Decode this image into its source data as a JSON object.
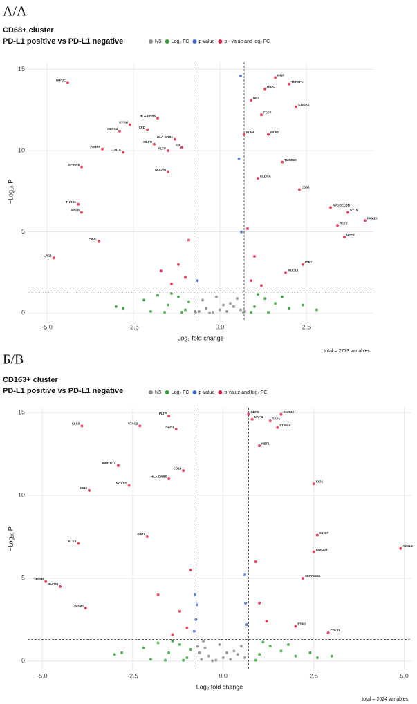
{
  "chart_data": [
    {
      "type": "scatter",
      "panel_label": "А/А",
      "title": "CD68+ cluster",
      "subtitle": "PD-L1 positive vs PD-L1 negative",
      "x_label": "Log₂ fold change",
      "y_label": "−Log₁₀ P",
      "caption": "total = 2773 variables",
      "xlim": [
        -5.56,
        4.44
      ],
      "ylim": [
        -0.5,
        15.45
      ],
      "xticks": [
        {
          "value": -5,
          "label": "-5.0"
        },
        -2.5,
        {
          "value": 0,
          "label": "0.0"
        },
        2.5
      ],
      "yticks": [
        0,
        5,
        10,
        15
      ],
      "grid": true,
      "vlines": [
        -0.75,
        0.7
      ],
      "hline": 1.3,
      "legend": "top-right",
      "series": [
        {
          "name": "NS",
          "color": "#8c8c8c",
          "x": [
            -0.6,
            -0.4,
            -0.2,
            0,
            0.2,
            0.4,
            0.6,
            -0.5,
            0.3,
            -0.1,
            0.5,
            -0.3,
            0.1,
            -0.7,
            0.68,
            -0.72,
            0.72
          ],
          "values": [
            0.1,
            0.3,
            0.05,
            0.2,
            0.1,
            0.4,
            0.2,
            0.8,
            0.6,
            1.0,
            0.9,
            0.02,
            0.5,
            0.05,
            0.05,
            0.1,
            0.1
          ]
        },
        {
          "name": "Log₂ FC",
          "color": "#3aa13a",
          "x": [
            -2.8,
            -2.2,
            -1.8,
            -1.5,
            -1.2,
            -1.0,
            -0.9,
            1.0,
            1.3,
            1.6,
            2.0,
            2.4,
            -2.0,
            -1.4,
            1.1,
            1.8,
            -3.0,
            2.8,
            -1.1,
            -1.6,
            0.9,
            1.4
          ],
          "values": [
            0.3,
            0.8,
            1.1,
            0.5,
            1.0,
            0.2,
            0.7,
            0.4,
            0.9,
            0.6,
            0.3,
            0.5,
            0.1,
            1.2,
            1.15,
            1.0,
            0.4,
            0.2,
            0.05,
            0.05,
            0.05,
            0.05
          ]
        },
        {
          "name": "p-value",
          "color": "#4a6fd1",
          "x": [
            0.6,
            0.55,
            0.62,
            -0.65
          ],
          "values": [
            14.6,
            9.5,
            5.0,
            2.0
          ]
        },
        {
          "name": "p - value and log₂ FC",
          "color": "#e0294a",
          "x": [
            -4.4,
            -2.6,
            -1.8,
            -2.1,
            -2.9,
            -3.4,
            -1.9,
            -1.5,
            -1.1,
            -1.3,
            -2.8,
            -4.0,
            -1.5,
            -4.1,
            -4.0,
            -4.8,
            -3.5,
            -1.2,
            -1.0,
            -1.4,
            -0.9,
            -1.7,
            1.6,
            2.0,
            1.3,
            2.2,
            0.9,
            1.2,
            0.7,
            1.4,
            1.8,
            1.1,
            2.3,
            3.2,
            3.7,
            4.2,
            3.4,
            3.6,
            2.4,
            1.9,
            1.0,
            0.9,
            1.2,
            0.8
          ],
          "values": [
            14.2,
            11.6,
            12.0,
            11.3,
            11.2,
            10.1,
            10.4,
            10.0,
            10.2,
            10.7,
            9.9,
            9.0,
            8.7,
            6.7,
            6.2,
            3.4,
            4.4,
            3.0,
            2.2,
            1.8,
            4.5,
            2.6,
            14.5,
            14.1,
            13.8,
            12.7,
            13.1,
            12.2,
            11.0,
            11.0,
            9.3,
            8.3,
            7.6,
            6.5,
            6.2,
            5.7,
            5.4,
            4.7,
            3.0,
            2.5,
            3.5,
            2.0,
            1.7,
            5.2
          ],
          "point_labels": [
            "TAPDE",
            "KYNU",
            "HLA-DRB5",
            "CFD",
            "CERS4",
            "FABP5",
            "MLPH",
            "PLTP",
            "C3",
            "HLA-DRB1",
            "FCN1A",
            "SPINK5",
            "ALCAM",
            "THBS1",
            "APOD",
            "LRG1",
            "CPVL",
            null,
            null,
            null,
            null,
            null,
            "MGP",
            "TNFSF1",
            "RNAJ",
            "S100A1",
            "NNT",
            "FGF7",
            "FLNA",
            "MLF2",
            "TMSB10",
            "CLDNA",
            "CD36",
            "APOBEC3B",
            "SYT5",
            "FAM20",
            "RCT7",
            "UPP2",
            "IGF2",
            "MUC16",
            null,
            null,
            null,
            null
          ]
        }
      ]
    },
    {
      "type": "scatter",
      "panel_label": "Б/В",
      "title": "CD163+ cluster",
      "subtitle": "PD-L1 positive vs PD-L1 negative",
      "x_label": "Log₂ fold change",
      "y_label": "−Log₁₀ P",
      "caption": "total = 2024 variables",
      "xlim": [
        -5.4,
        5.2
      ],
      "ylim": [
        -0.55,
        15.3
      ],
      "xticks": [
        {
          "value": -5,
          "label": "-5.0"
        },
        -2.5,
        {
          "value": 0,
          "label": "0.0"
        },
        2.5,
        {
          "value": 5,
          "label": "5.0"
        }
      ],
      "yticks": [
        0,
        5,
        10,
        15
      ],
      "grid": true,
      "vlines": [
        -0.75,
        0.7
      ],
      "hline": 1.3,
      "legend": "top-right",
      "series": [
        {
          "name": "NS",
          "color": "#8c8c8c",
          "x": [
            -0.6,
            -0.4,
            -0.2,
            0,
            0.2,
            0.4,
            0.6,
            -0.5,
            0.3,
            -0.1,
            0.5,
            -0.3,
            0.1,
            -0.7,
            -0.65,
            -0.55
          ],
          "values": [
            0.1,
            0.3,
            0.05,
            0.2,
            0.1,
            0.4,
            0.2,
            0.8,
            0.6,
            1.0,
            0.9,
            0.02,
            0.5,
            0.9,
            0.5,
            1.2
          ]
        },
        {
          "name": "Log₂ FC",
          "color": "#3aa13a",
          "x": [
            -2.8,
            -2.2,
            -1.8,
            -1.5,
            -1.2,
            -1.0,
            -0.9,
            1.0,
            1.3,
            1.6,
            2.0,
            2.4,
            -2.0,
            -1.4,
            1.1,
            1.8,
            -3.0,
            2.6,
            -1.1,
            -1.6,
            0.9,
            3.0
          ],
          "values": [
            0.5,
            0.8,
            1.1,
            0.5,
            1.0,
            0.2,
            0.7,
            0.4,
            0.9,
            0.6,
            0.3,
            0.5,
            0.1,
            1.2,
            1.15,
            1.0,
            0.4,
            0.2,
            0.05,
            0.05,
            0.05,
            0.3
          ]
        },
        {
          "name": "p-value",
          "color": "#4a6fd1",
          "x": [
            -0.75,
            -0.72,
            -0.78,
            0.62,
            0.6,
            -0.8,
            0.65
          ],
          "values": [
            2.5,
            3.4,
            4.0,
            3.5,
            5.2,
            1.8,
            2.2
          ]
        },
        {
          "name": "p-value and log₂ FC",
          "color": "#e0294a",
          "x": [
            -4.5,
            -4.9,
            -3.9,
            -2.9,
            -2.3,
            -1.5,
            -1.3,
            -1.1,
            -1.5,
            -2.6,
            -3.7,
            -2.1,
            -4.0,
            -3.8,
            -1.2,
            -1.0,
            -1.8,
            -0.9,
            -1.4,
            0.7,
            0.8,
            1.3,
            1.6,
            1.0,
            1.5,
            2.5,
            2.6,
            2.5,
            2.2,
            2.9,
            2.0,
            4.9,
            1.0,
            1.2,
            0.9
          ],
          "values": [
            4.5,
            4.8,
            14.2,
            11.8,
            14.2,
            14.8,
            14.0,
            11.5,
            11.0,
            10.6,
            10.3,
            7.5,
            7.1,
            3.2,
            3.0,
            2.0,
            4.0,
            5.5,
            1.6,
            14.9,
            14.6,
            14.5,
            14.9,
            13.0,
            14.1,
            10.7,
            7.6,
            6.6,
            5.0,
            1.7,
            2.1,
            6.8,
            3.5,
            2.4,
            6.0
          ],
          "point_labels": [
            "OLFM4",
            "MSMB",
            "KLK6",
            "PPP1R1A",
            "STAC2",
            "PLTP",
            "DAB1",
            "CD14",
            "HLA-DRB5",
            "NCALD",
            "ZG16",
            "SPP1",
            "KLK5",
            "CADM3",
            null,
            null,
            null,
            null,
            null,
            "GDF6",
            "CAPG",
            "TAP1",
            "SNRG9",
            "NET1",
            "S100A6",
            "IDO1",
            "S100P",
            "RNF103",
            "SERPINB2",
            "COL19",
            "EDN2",
            "A2ML1",
            null,
            null,
            null
          ]
        }
      ]
    }
  ]
}
